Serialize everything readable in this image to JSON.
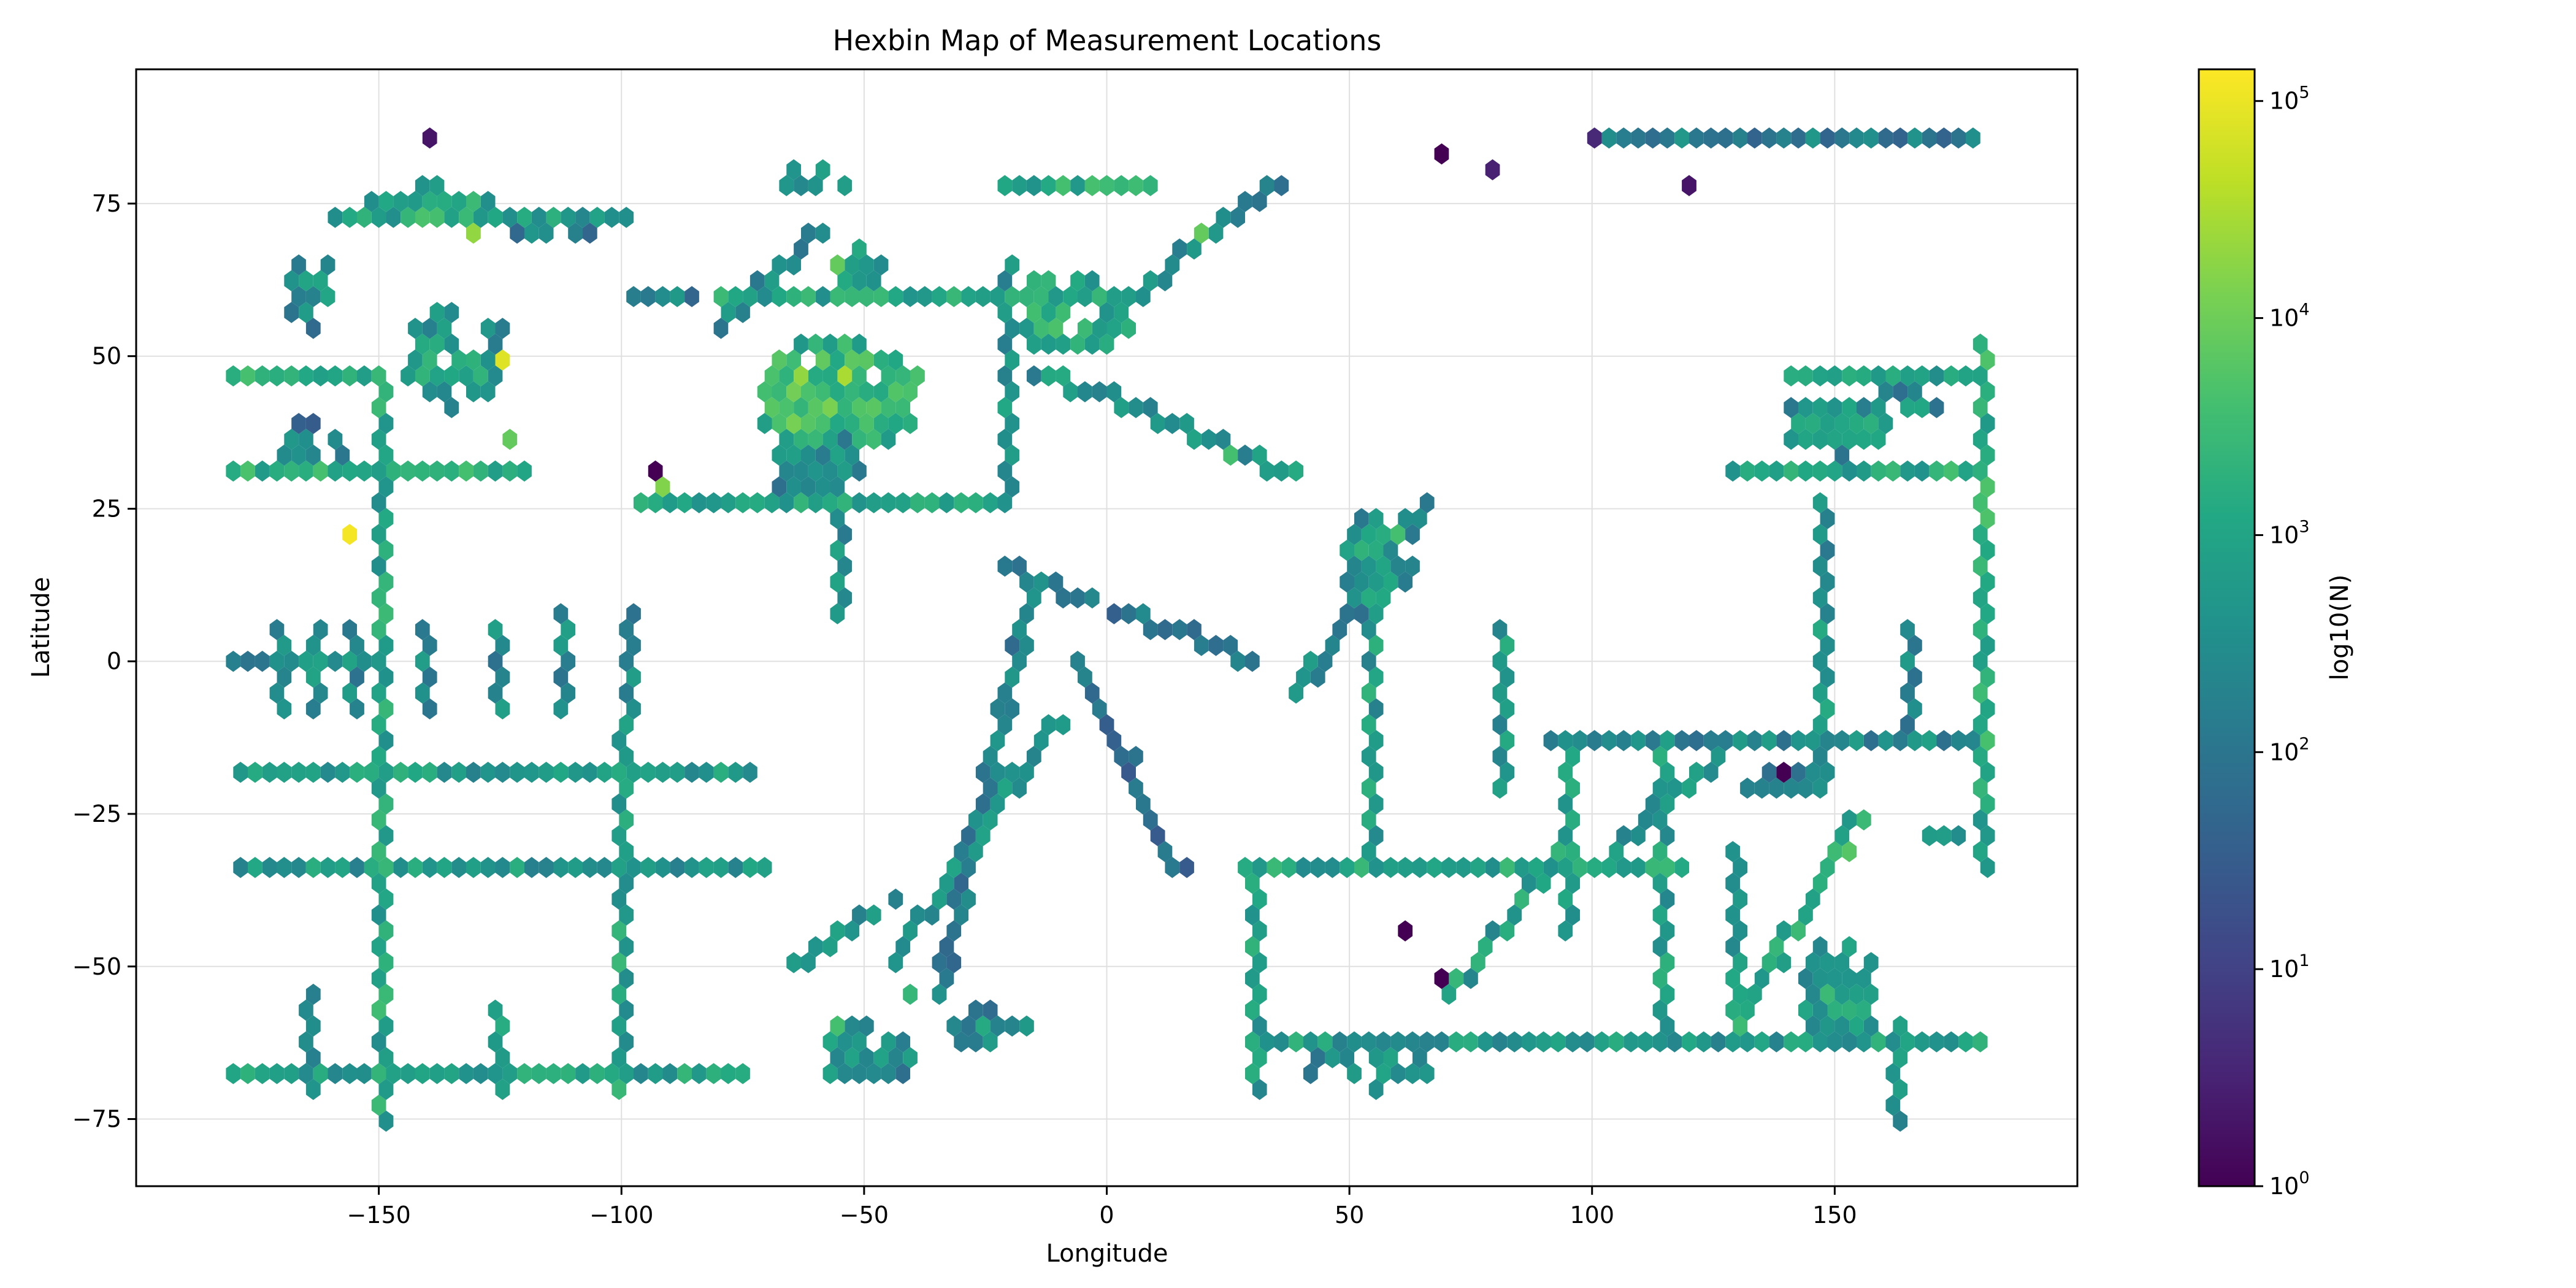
{
  "chart_data": {
    "type": "heatmap",
    "subtype": "hexbin",
    "title": "Hexbin Map of Measurement Locations",
    "xlabel": "Longitude",
    "ylabel": "Latitude",
    "xlim": [
      -200,
      200
    ],
    "ylim": [
      -86,
      97
    ],
    "xticks": [
      {
        "value": -150,
        "label": "−150"
      },
      {
        "value": -100,
        "label": "−100"
      },
      {
        "value": -50,
        "label": "−50"
      },
      {
        "value": 0,
        "label": "0"
      },
      {
        "value": 50,
        "label": "50"
      },
      {
        "value": 100,
        "label": "100"
      },
      {
        "value": 150,
        "label": "150"
      }
    ],
    "yticks": [
      {
        "value": -75,
        "label": "−75"
      },
      {
        "value": -50,
        "label": "−50"
      },
      {
        "value": -25,
        "label": "−25"
      },
      {
        "value": 0,
        "label": "0"
      },
      {
        "value": 25,
        "label": "25"
      },
      {
        "value": 50,
        "label": "50"
      },
      {
        "value": 75,
        "label": "75"
      }
    ],
    "grid": true,
    "colormap": "viridis",
    "colorbar": {
      "label": "log10(N)",
      "scale": "log",
      "range": [
        1,
        140000
      ],
      "ticks": [
        {
          "value": 1,
          "base": "10",
          "exp": "0"
        },
        {
          "value": 10,
          "base": "10",
          "exp": "1"
        },
        {
          "value": 100,
          "base": "10",
          "exp": "2"
        },
        {
          "value": 1000,
          "base": "10",
          "exp": "3"
        },
        {
          "value": 10000,
          "base": "10",
          "exp": "4"
        },
        {
          "value": 100000,
          "base": "10",
          "exp": "5"
        }
      ]
    },
    "bin_width_deg": 3.0,
    "features": [
      {
        "kind": "row",
        "lat": 47,
        "lon": [
          -180,
          -150
        ],
        "count": 1500
      },
      {
        "kind": "row",
        "lat": 30,
        "lon": [
          -180,
          -120
        ],
        "count": 1500
      },
      {
        "kind": "row",
        "lat": 0,
        "lon": [
          -180,
          -150
        ],
        "count": 250
      },
      {
        "kind": "row",
        "lat": -18,
        "lon": [
          -180,
          -75
        ],
        "count": 600
      },
      {
        "kind": "row",
        "lat": -33,
        "lon": [
          -180,
          -70
        ],
        "count": 500
      },
      {
        "kind": "row",
        "lat": -67,
        "lon": [
          -180,
          -75
        ],
        "count": 700
      },
      {
        "kind": "row",
        "lat": 74,
        "lon": [
          -160,
          -100
        ],
        "count": 800
      },
      {
        "kind": "row",
        "lat": 60,
        "lon": [
          -80,
          -10
        ],
        "count": 900
      },
      {
        "kind": "row",
        "lat": 26,
        "lon": [
          -95,
          -20
        ],
        "count": 900
      },
      {
        "kind": "row",
        "lat": 78,
        "lon": [
          -20,
          10
        ],
        "count": 1500
      },
      {
        "kind": "row",
        "lat": -33,
        "lon": [
          28,
          120
        ],
        "count": 900
      },
      {
        "kind": "row",
        "lat": -63,
        "lon": [
          30,
          180
        ],
        "count": 600
      },
      {
        "kind": "row",
        "lat": -12,
        "lon": [
          90,
          180
        ],
        "count": 250
      },
      {
        "kind": "row",
        "lat": 30,
        "lon": [
          130,
          180
        ],
        "count": 1200
      },
      {
        "kind": "row",
        "lat": 47,
        "lon": [
          140,
          180
        ],
        "count": 800
      },
      {
        "kind": "row",
        "lat": 86,
        "lon": [
          100,
          180
        ],
        "count": 150
      },
      {
        "kind": "col",
        "lon": -150,
        "lat": [
          -75,
          48
        ],
        "count": 1000
      },
      {
        "kind": "col",
        "lon": -100,
        "lat": [
          -70,
          -10
        ],
        "count": 800
      },
      {
        "kind": "col",
        "lon": -170,
        "lat": [
          -8,
          7
        ],
        "count": 300
      },
      {
        "kind": "col",
        "lon": -163,
        "lat": [
          -8,
          7
        ],
        "count": 300
      },
      {
        "kind": "col",
        "lon": -156,
        "lat": [
          -8,
          7
        ],
        "count": 300
      },
      {
        "kind": "col",
        "lon": -140,
        "lat": [
          -8,
          7
        ],
        "count": 250
      },
      {
        "kind": "col",
        "lon": -126,
        "lat": [
          -8,
          7
        ],
        "count": 250
      },
      {
        "kind": "col",
        "lon": -112,
        "lat": [
          -8,
          10
        ],
        "count": 250
      },
      {
        "kind": "col",
        "lon": -98,
        "lat": [
          -8,
          10
        ],
        "count": 250
      },
      {
        "kind": "col",
        "lon": -165,
        "lat": [
          -70,
          -52
        ],
        "count": 200
      },
      {
        "kind": "col",
        "lon": -126,
        "lat": [
          -70,
          -55
        ],
        "count": 500
      },
      {
        "kind": "col",
        "lon": -55,
        "lat": [
          8,
          48
        ],
        "count": 300
      },
      {
        "kind": "col",
        "lon": -20,
        "lat": [
          25,
          65
        ],
        "count": 500
      },
      {
        "kind": "col",
        "lon": 82,
        "lat": [
          -20,
          6
        ],
        "count": 600
      },
      {
        "kind": "col",
        "lon": 55,
        "lat": [
          -33,
          20
        ],
        "count": 600
      },
      {
        "kind": "col",
        "lon": 95,
        "lat": [
          -45,
          -12
        ],
        "count": 800
      },
      {
        "kind": "col",
        "lon": 115,
        "lat": [
          -60,
          -12
        ],
        "count": 600
      },
      {
        "kind": "col",
        "lon": 130,
        "lat": [
          -60,
          -30
        ],
        "count": 500
      },
      {
        "kind": "col",
        "lon": 147,
        "lat": [
          -20,
          28
        ],
        "count": 400
      },
      {
        "kind": "col",
        "lon": 165,
        "lat": [
          -12,
          8
        ],
        "count": 250
      },
      {
        "kind": "col",
        "lon": 180,
        "lat": [
          -35,
          52
        ],
        "count": 1500
      },
      {
        "kind": "col",
        "lon": 30,
        "lat": [
          -70,
          -33
        ],
        "count": 800
      },
      {
        "kind": "col",
        "lon": 163,
        "lat": [
          -75,
          -57
        ],
        "count": 300
      },
      {
        "kind": "line",
        "from": [
          -35,
          -55
        ],
        "to": [
          -15,
          12
        ],
        "count": 150
      },
      {
        "kind": "line",
        "from": [
          -45,
          -50
        ],
        "to": [
          -10,
          -10
        ],
        "count": 300
      },
      {
        "kind": "line",
        "from": [
          -20,
          15
        ],
        "to": [
          30,
          0
        ],
        "count": 80
      },
      {
        "kind": "line",
        "from": [
          -5,
          0
        ],
        "to": [
          15,
          -35
        ],
        "count": 60
      },
      {
        "kind": "line",
        "from": [
          40,
          -5
        ],
        "to": [
          65,
          25
        ],
        "count": 200
      },
      {
        "kind": "line",
        "from": [
          -15,
          48
        ],
        "to": [
          40,
          30
        ],
        "count": 400
      },
      {
        "kind": "line",
        "from": [
          35,
          78
        ],
        "to": [
          5,
          60
        ],
        "count": 200
      },
      {
        "kind": "line",
        "from": [
          70,
          -55
        ],
        "to": [
          95,
          -30
        ],
        "count": 700
      },
      {
        "kind": "line",
        "from": [
          130,
          -60
        ],
        "to": [
          155,
          -25
        ],
        "count": 900
      },
      {
        "kind": "line",
        "from": [
          100,
          -35
        ],
        "to": [
          130,
          -12
        ],
        "count": 300
      },
      {
        "kind": "line",
        "from": [
          -80,
          55
        ],
        "to": [
          -60,
          70
        ],
        "count": 250
      },
      {
        "kind": "line",
        "from": [
          -65,
          -50
        ],
        "to": [
          -45,
          -40
        ],
        "count": 300
      },
      {
        "kind": "blob",
        "center": [
          -55,
          45
        ],
        "radius": [
          18,
          10
        ],
        "count": 3000
      },
      {
        "kind": "blob",
        "center": [
          -10,
          57
        ],
        "radius": [
          14,
          7
        ],
        "count": 1200
      },
      {
        "kind": "blob",
        "center": [
          -135,
          50
        ],
        "radius": [
          12,
          8
        ],
        "count": 600
      },
      {
        "kind": "blob",
        "center": [
          -60,
          35
        ],
        "radius": [
          10,
          8
        ],
        "count": 300
      },
      {
        "kind": "blob",
        "center": [
          -140,
          73
        ],
        "radius": [
          14,
          4
        ],
        "count": 1200
      },
      {
        "kind": "blob",
        "center": [
          -165,
          60
        ],
        "radius": [
          6,
          6
        ],
        "count": 300
      },
      {
        "kind": "blob",
        "center": [
          -52,
          65
        ],
        "radius": [
          5,
          4
        ],
        "count": 1200
      },
      {
        "kind": "blob",
        "center": [
          55,
          15
        ],
        "radius": [
          8,
          8
        ],
        "count": 500
      },
      {
        "kind": "blob",
        "center": [
          150,
          -55
        ],
        "radius": [
          9,
          10
        ],
        "count": 700
      },
      {
        "kind": "blob",
        "center": [
          150,
          40
        ],
        "radius": [
          12,
          5
        ],
        "count": 600
      },
      {
        "kind": "blob",
        "center": [
          -50,
          -65
        ],
        "radius": [
          10,
          6
        ],
        "count": 500
      },
      {
        "kind": "blob",
        "center": [
          -165,
          35
        ],
        "radius": [
          8,
          4
        ],
        "count": 200
      },
      {
        "kind": "blob",
        "center": [
          -115,
          70
        ],
        "radius": [
          10,
          3
        ],
        "count": 150
      },
      {
        "kind": "blob",
        "center": [
          -60,
          78
        ],
        "radius": [
          8,
          3
        ],
        "count": 600
      },
      {
        "kind": "blob",
        "center": [
          55,
          -65
        ],
        "radius": [
          15,
          4
        ],
        "count": 400
      },
      {
        "kind": "blob",
        "center": [
          -25,
          -60
        ],
        "radius": [
          10,
          4
        ],
        "count": 300
      },
      {
        "kind": "blob",
        "center": [
          -95,
          60
        ],
        "radius": [
          10,
          2
        ],
        "count": 200
      },
      {
        "kind": "blob",
        "center": [
          170,
          -30
        ],
        "radius": [
          8,
          2
        ],
        "count": 600
      },
      {
        "kind": "blob",
        "center": [
          165,
          42
        ],
        "radius": [
          8,
          3
        ],
        "count": 300
      },
      {
        "kind": "blob",
        "center": [
          140,
          -20
        ],
        "radius": [
          10,
          3
        ],
        "count": 300
      }
    ],
    "hotspots": [
      {
        "lon": -125,
        "lat": 50,
        "count": 80000
      },
      {
        "lon": -130,
        "lat": 70,
        "count": 20000
      },
      {
        "lon": -55,
        "lat": 48,
        "count": 30000
      },
      {
        "lon": -63,
        "lat": 48,
        "count": 20000
      },
      {
        "lon": -65,
        "lat": 40,
        "count": 12000
      },
      {
        "lon": -92,
        "lat": 28,
        "count": 15000
      },
      {
        "lon": -55,
        "lat": 65,
        "count": 8000
      },
      {
        "lon": -157,
        "lat": 22,
        "count": 120000
      },
      {
        "lon": -122,
        "lat": 37,
        "count": 8000
      },
      {
        "lon": -5,
        "lat": 55,
        "count": 3000
      },
      {
        "lon": 18,
        "lat": 70,
        "count": 8000
      },
      {
        "lon": 60,
        "lat": 20,
        "count": 4000
      },
      {
        "lon": 25,
        "lat": 35,
        "count": 4000
      },
      {
        "lon": 153,
        "lat": -30,
        "count": 6000
      },
      {
        "lon": 148,
        "lat": -55,
        "count": 3000
      },
      {
        "lon": -55,
        "lat": -60,
        "count": 4000
      },
      {
        "lon": -40,
        "lat": -55,
        "count": 2500
      },
      {
        "lon": -93,
        "lat": 31,
        "count": 1
      },
      {
        "lon": 68,
        "lat": 83,
        "count": 1
      },
      {
        "lon": 70,
        "lat": -53,
        "count": 1
      },
      {
        "lon": 60,
        "lat": -45,
        "count": 1
      },
      {
        "lon": 140,
        "lat": -17,
        "count": 1
      },
      {
        "lon": 120,
        "lat": 78,
        "count": 2
      },
      {
        "lon": -140,
        "lat": 87,
        "count": 2
      },
      {
        "lon": 80,
        "lat": 80,
        "count": 3
      },
      {
        "lon": 100,
        "lat": 87,
        "count": 4
      }
    ]
  }
}
